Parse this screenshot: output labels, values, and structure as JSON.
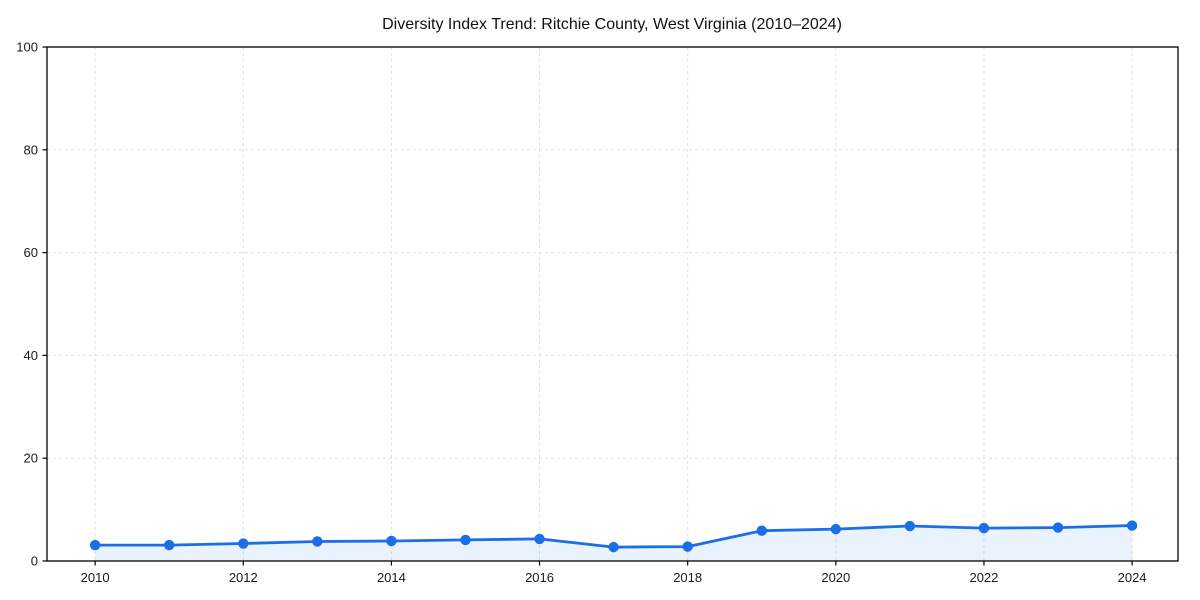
{
  "page": {
    "background": "#ffffff"
  },
  "chart_data": {
    "type": "area",
    "title": "Diversity Index Trend: Ritchie County, West Virginia (2010–2024)",
    "xlabel": "",
    "ylabel": "",
    "x": [
      2010,
      2011,
      2012,
      2013,
      2014,
      2015,
      2016,
      2017,
      2018,
      2019,
      2020,
      2021,
      2022,
      2023,
      2024
    ],
    "series": [
      {
        "name": "Diversity Index",
        "values": [
          3.1,
          3.1,
          3.4,
          3.8,
          3.9,
          4.1,
          4.3,
          2.7,
          2.8,
          5.9,
          6.2,
          6.8,
          6.4,
          6.5,
          6.9
        ]
      }
    ],
    "xlim": [
      2009.35,
      2024.62
    ],
    "ylim": [
      0,
      100
    ],
    "xticks": [
      2010,
      2012,
      2014,
      2016,
      2018,
      2020,
      2022,
      2024
    ],
    "yticks": [
      0,
      20,
      40,
      60,
      80,
      100
    ],
    "grid": true,
    "grid_style": "dashed",
    "legend_position": "none",
    "line_color": "#1b6ee8",
    "marker_color": "#1b6ee8",
    "fill_color": "rgba(27,110,232,0.09)",
    "grid_color": "#e0e0e0",
    "spine_color": "#000000"
  }
}
